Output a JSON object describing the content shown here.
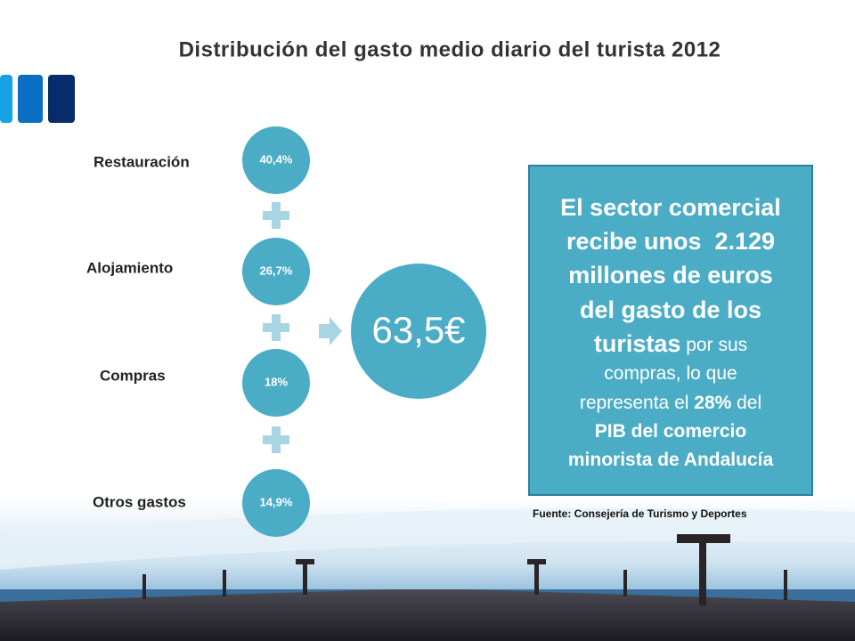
{
  "title": "Distribución del gasto medio diario del turista 2012",
  "items": [
    {
      "label": "Restauración",
      "value": "40,4%"
    },
    {
      "label": "Alojamiento",
      "value": "26,7%"
    },
    {
      "label": "Compras",
      "value": "18%"
    },
    {
      "label": "Otros gastos",
      "value": "14,9%"
    }
  ],
  "total": "63,5€",
  "callout": {
    "lines": [
      [
        "El sector comercial"
      ],
      [
        "recibe unos  2.129"
      ],
      [
        "millones de euros"
      ],
      [
        "del gasto de los"
      ],
      [
        "turistas",
        " por sus"
      ],
      [
        "compras, lo que"
      ],
      [
        "representa el ",
        "28%",
        " del"
      ],
      [
        "PIB del comercio"
      ],
      [
        "minorista de Andalucía"
      ]
    ]
  },
  "source": "Fuente: Consejería de Turismo y Deportes"
}
